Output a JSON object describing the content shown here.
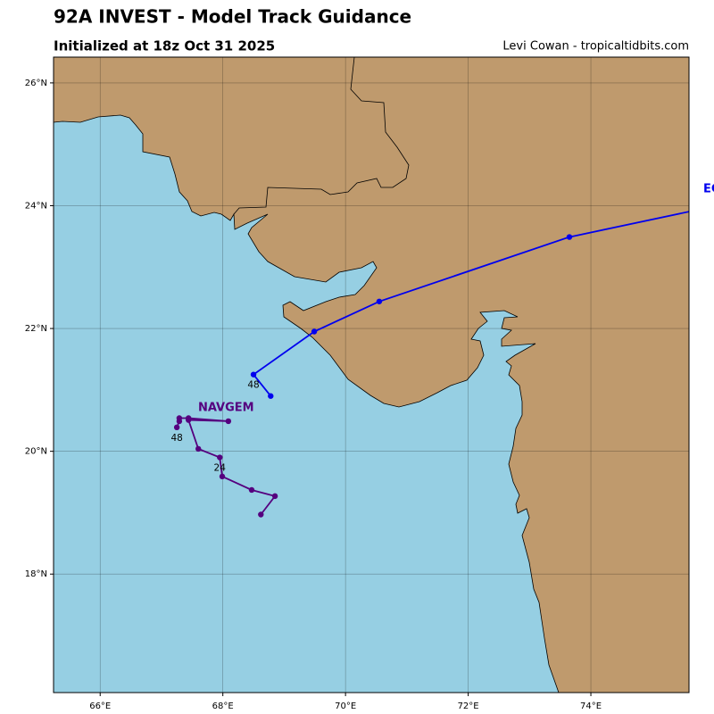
{
  "chart_data": {
    "type": "track",
    "title": "92A INVEST - Model Track Guidance",
    "subtitle": "Initialized at 18z Oct 31 2025",
    "credit": "Levi Cowan - tropicaltidbits.com",
    "xlim": [
      65.24,
      75.6
    ],
    "ylim": [
      16.07,
      26.42
    ],
    "xticks": [
      {
        "value": 66,
        "label": "66°E"
      },
      {
        "value": 68,
        "label": "68°E"
      },
      {
        "value": 70,
        "label": "70°E"
      },
      {
        "value": 72,
        "label": "72°E"
      },
      {
        "value": 74,
        "label": "74°E"
      }
    ],
    "yticks": [
      {
        "value": 18,
        "label": "18°N"
      },
      {
        "value": 20,
        "label": "20°N"
      },
      {
        "value": 22,
        "label": "22°N"
      },
      {
        "value": 24,
        "label": "24°N"
      },
      {
        "value": 26,
        "label": "26°N"
      }
    ],
    "grid": true,
    "land_color": "#bf9a6d",
    "sea_color": "#96cfe3",
    "series": [
      {
        "name": "EC",
        "color": "#0000ee",
        "x": [
          68.78,
          68.5,
          69.49,
          70.55,
          73.65,
          77.0
        ],
        "values": [
          20.9,
          21.25,
          21.95,
          22.44,
          23.49,
          24.2
        ],
        "point_labels": [
          null,
          "48",
          null,
          null,
          null,
          null
        ]
      },
      {
        "name": "NAVGEM",
        "color": "#55007f",
        "x": [
          68.62,
          68.85,
          68.47,
          67.99,
          67.95,
          67.6,
          67.44,
          68.09,
          67.44,
          67.29,
          67.29,
          67.25
        ],
        "values": [
          18.97,
          19.27,
          19.37,
          19.59,
          19.9,
          20.04,
          20.51,
          20.49,
          20.54,
          20.54,
          20.49,
          20.39
        ],
        "point_labels": [
          null,
          null,
          null,
          null,
          "24",
          null,
          null,
          null,
          null,
          null,
          null,
          "48"
        ]
      }
    ]
  }
}
